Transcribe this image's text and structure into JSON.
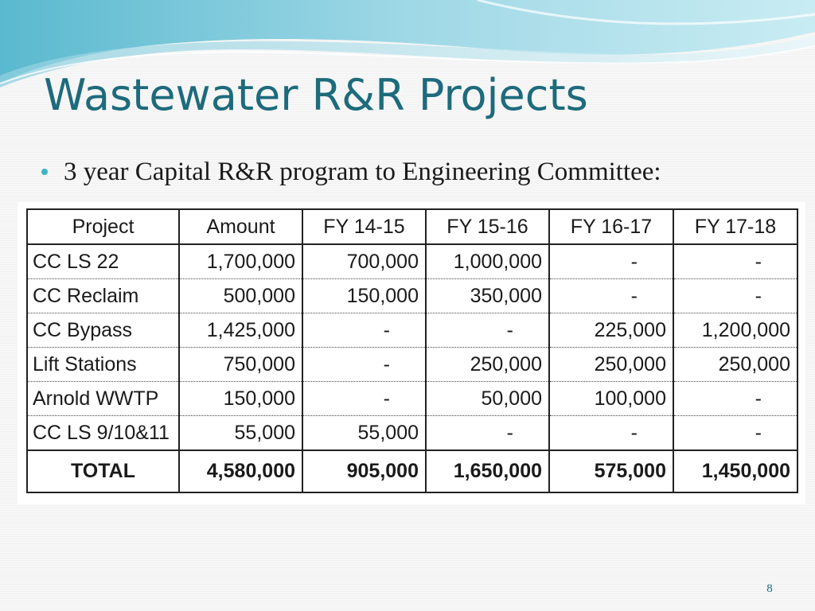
{
  "slide": {
    "title": "Wastewater R&R Projects",
    "bullet": "3 year Capital R&R program to Engineering Committee:",
    "page_number": "8",
    "colors": {
      "title": "#1d6b7c",
      "bullet": "#3fb4c4",
      "wave_light": "#bfe6ee",
      "wave_dark": "#5ab9cf"
    }
  },
  "table": {
    "headers": [
      "Project",
      "Amount",
      "FY 14-15",
      "FY 15-16",
      "FY 16-17",
      "FY 17-18"
    ],
    "rows": [
      [
        "CC LS 22",
        "1,700,000",
        "700,000",
        "1,000,000",
        "-",
        "-"
      ],
      [
        "CC Reclaim",
        "500,000",
        "150,000",
        "350,000",
        "-",
        "-"
      ],
      [
        "CC Bypass",
        "1,425,000",
        "-",
        "-",
        "225,000",
        "1,200,000"
      ],
      [
        "Lift Stations",
        "750,000",
        "-",
        "250,000",
        "250,000",
        "250,000"
      ],
      [
        "Arnold WWTP",
        "150,000",
        "-",
        "50,000",
        "100,000",
        "-"
      ],
      [
        "CC LS 9/10&11",
        "55,000",
        "55,000",
        "-",
        "-",
        "-"
      ]
    ],
    "total": [
      "TOTAL",
      "4,580,000",
      "905,000",
      "1,650,000",
      "575,000",
      "1,450,000"
    ]
  }
}
